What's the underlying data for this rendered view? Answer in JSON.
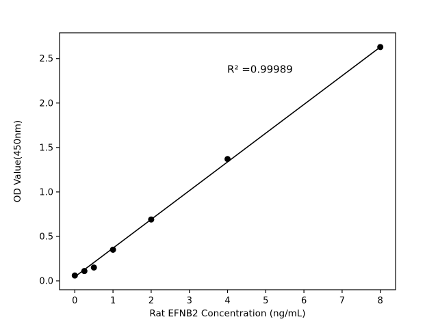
{
  "chart_data": {
    "type": "scatter",
    "title": "",
    "xlabel": "Rat EFNB2 Concentration (ng/mL)",
    "ylabel": "OD Value(450nm)",
    "annotation": {
      "text": "R² =0.99989",
      "x": 4.85,
      "y": 2.38
    },
    "x": [
      0,
      0.25,
      0.5,
      1,
      2,
      4,
      8
    ],
    "y": [
      0.06,
      0.11,
      0.15,
      0.35,
      0.69,
      1.37,
      2.63
    ],
    "fit_line": {
      "x": [
        0,
        8
      ],
      "y": [
        0.045,
        2.63
      ]
    },
    "xlim": [
      -0.4,
      8.4
    ],
    "ylim": [
      -0.1,
      2.79
    ],
    "xticks": [
      0,
      1,
      2,
      3,
      4,
      5,
      6,
      7,
      8
    ],
    "xtick_labels": [
      "0",
      "1",
      "2",
      "3",
      "4",
      "5",
      "6",
      "7",
      "8"
    ],
    "yticks": [
      0.0,
      0.5,
      1.0,
      1.5,
      2.0,
      2.5
    ],
    "ytick_labels": [
      "0.0",
      "0.5",
      "1.0",
      "1.5",
      "2.0",
      "2.5"
    ],
    "grid": false,
    "legend_position": "none",
    "marker_color": "#000000",
    "line_color": "#000000",
    "axis_color": "#000000",
    "background_color": "#ffffff"
  }
}
